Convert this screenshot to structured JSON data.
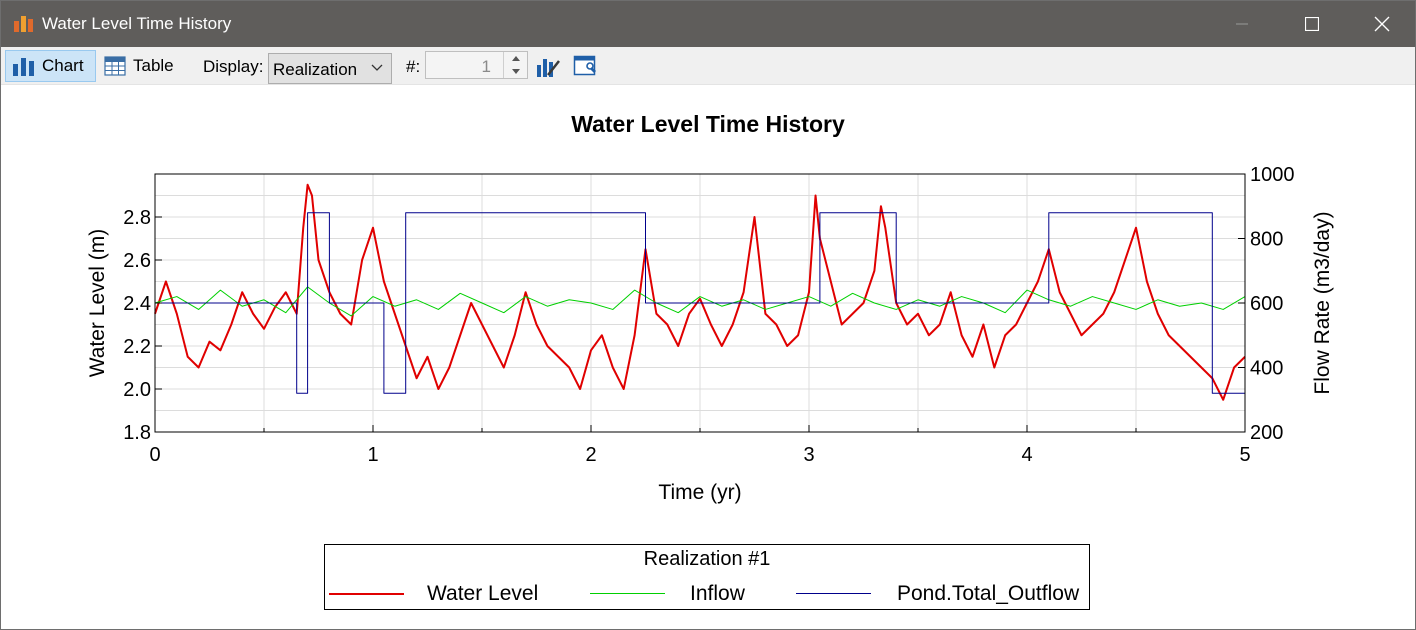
{
  "window": {
    "title": "Water Level Time History",
    "minimize_icon": "minimize-icon",
    "maximize_icon": "maximize-icon",
    "close_icon": "close-icon"
  },
  "toolbar": {
    "chart_label": "Chart",
    "table_label": "Table",
    "display_label": "Display:",
    "display_value": "Realization",
    "number_label": "#:",
    "number_value": "1",
    "accent": "#cce4f7"
  },
  "legend": {
    "title": "Realization #1",
    "items": [
      {
        "label": "Water Level",
        "color": "#e00000"
      },
      {
        "label": "Inflow",
        "color": "#00d000"
      },
      {
        "label": "Pond.Total_Outflow",
        "color": "#00008b"
      }
    ]
  },
  "chart_data": {
    "type": "line",
    "title": "Water Level Time History",
    "xlabel": "Time (yr)",
    "ylabel": "Water Level (m)",
    "y2label": "Flow Rate (m3/day)",
    "xlim": [
      0,
      5
    ],
    "ylim": [
      1.8,
      3.0
    ],
    "y2lim": [
      200,
      1000
    ],
    "xticks": [
      "0",
      "1",
      "2",
      "3",
      "4",
      "5"
    ],
    "yticks": [
      "1.8",
      "2.0",
      "2.2",
      "2.4",
      "2.6",
      "2.8"
    ],
    "y2ticks": [
      "200",
      "400",
      "600",
      "800",
      "1000"
    ],
    "grid": true,
    "legend_position": "bottom",
    "series": [
      {
        "name": "Water Level",
        "axis": "left",
        "color": "#e00000",
        "x": [
          0,
          0.05,
          0.1,
          0.15,
          0.2,
          0.25,
          0.3,
          0.35,
          0.4,
          0.45,
          0.5,
          0.55,
          0.6,
          0.65,
          0.68,
          0.7,
          0.72,
          0.75,
          0.8,
          0.85,
          0.9,
          0.95,
          1.0,
          1.05,
          1.1,
          1.15,
          1.2,
          1.25,
          1.3,
          1.35,
          1.4,
          1.45,
          1.5,
          1.55,
          1.6,
          1.65,
          1.7,
          1.75,
          1.8,
          1.85,
          1.9,
          1.95,
          2.0,
          2.05,
          2.1,
          2.15,
          2.2,
          2.25,
          2.3,
          2.35,
          2.4,
          2.45,
          2.5,
          2.55,
          2.6,
          2.65,
          2.7,
          2.75,
          2.8,
          2.85,
          2.9,
          2.95,
          3.0,
          3.03,
          3.05,
          3.1,
          3.15,
          3.2,
          3.25,
          3.3,
          3.33,
          3.35,
          3.4,
          3.45,
          3.5,
          3.55,
          3.6,
          3.65,
          3.7,
          3.75,
          3.8,
          3.85,
          3.9,
          3.95,
          4.0,
          4.05,
          4.1,
          4.15,
          4.2,
          4.25,
          4.3,
          4.35,
          4.4,
          4.45,
          4.5,
          4.55,
          4.6,
          4.65,
          4.7,
          4.75,
          4.8,
          4.85,
          4.9,
          4.95,
          5.0
        ],
        "y": [
          2.35,
          2.5,
          2.35,
          2.15,
          2.1,
          2.22,
          2.18,
          2.3,
          2.45,
          2.35,
          2.28,
          2.38,
          2.45,
          2.35,
          2.75,
          2.95,
          2.9,
          2.6,
          2.45,
          2.35,
          2.3,
          2.6,
          2.75,
          2.5,
          2.35,
          2.2,
          2.05,
          2.15,
          2.0,
          2.1,
          2.25,
          2.4,
          2.3,
          2.2,
          2.1,
          2.25,
          2.45,
          2.3,
          2.2,
          2.15,
          2.1,
          2.0,
          2.18,
          2.25,
          2.1,
          2.0,
          2.25,
          2.65,
          2.35,
          2.3,
          2.2,
          2.35,
          2.42,
          2.3,
          2.2,
          2.3,
          2.45,
          2.8,
          2.35,
          2.3,
          2.2,
          2.25,
          2.45,
          2.9,
          2.7,
          2.5,
          2.3,
          2.35,
          2.4,
          2.55,
          2.85,
          2.75,
          2.4,
          2.3,
          2.35,
          2.25,
          2.3,
          2.45,
          2.25,
          2.15,
          2.3,
          2.1,
          2.25,
          2.3,
          2.4,
          2.5,
          2.65,
          2.45,
          2.35,
          2.25,
          2.3,
          2.35,
          2.45,
          2.6,
          2.75,
          2.5,
          2.35,
          2.25,
          2.2,
          2.15,
          2.1,
          2.05,
          1.95,
          2.1,
          2.15
        ]
      },
      {
        "name": "Inflow",
        "axis": "right",
        "color": "#00d000",
        "x": [
          0,
          0.1,
          0.2,
          0.3,
          0.4,
          0.5,
          0.6,
          0.7,
          0.8,
          0.9,
          1.0,
          1.1,
          1.2,
          1.3,
          1.4,
          1.5,
          1.6,
          1.7,
          1.8,
          1.9,
          2.0,
          2.1,
          2.2,
          2.3,
          2.4,
          2.5,
          2.6,
          2.7,
          2.8,
          2.9,
          3.0,
          3.1,
          3.2,
          3.3,
          3.4,
          3.5,
          3.6,
          3.7,
          3.8,
          3.9,
          4.0,
          4.1,
          4.2,
          4.3,
          4.4,
          4.5,
          4.6,
          4.7,
          4.8,
          4.9,
          5.0
        ],
        "y": [
          600,
          620,
          580,
          640,
          590,
          610,
          570,
          650,
          600,
          560,
          620,
          590,
          610,
          580,
          630,
          600,
          570,
          620,
          590,
          610,
          600,
          580,
          640,
          600,
          570,
          620,
          590,
          610,
          580,
          600,
          620,
          590,
          630,
          600,
          580,
          610,
          590,
          620,
          600,
          570,
          640,
          610,
          590,
          620,
          600,
          580,
          610,
          590,
          600,
          580,
          620
        ]
      },
      {
        "name": "Pond.Total_Outflow",
        "axis": "right",
        "color": "#00008b",
        "x": [
          0,
          0.07,
          0.42,
          0.65,
          0.7,
          0.8,
          1.05,
          1.15,
          2.25,
          2.75,
          3.05,
          3.35,
          3.4,
          4.0,
          4.1,
          4.5,
          4.85,
          5.0
        ],
        "y": [
          600,
          600,
          600,
          320,
          880,
          600,
          320,
          880,
          600,
          600,
          880,
          880,
          600,
          600,
          880,
          880,
          320,
          600
        ]
      }
    ]
  }
}
